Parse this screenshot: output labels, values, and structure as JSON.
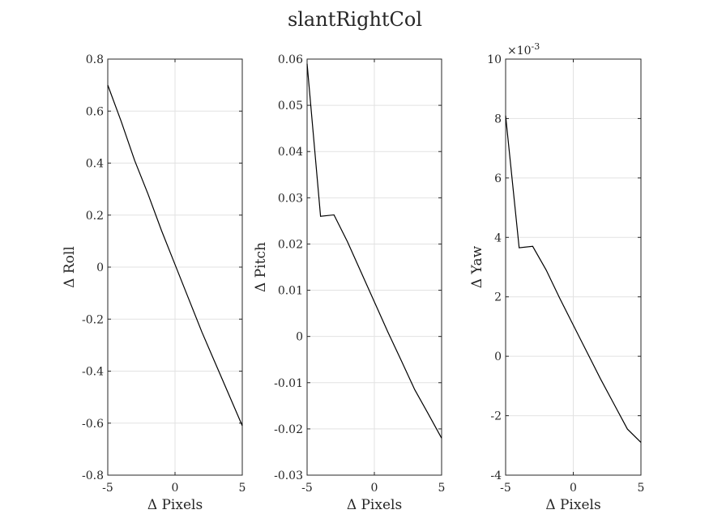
{
  "figure": {
    "title": "slantRightCol"
  },
  "chart_data": [
    {
      "type": "line",
      "xlabel": "Δ Pixels",
      "ylabel": "Δ Roll",
      "xlim": [
        -5,
        5
      ],
      "ylim": [
        -0.8,
        0.8
      ],
      "grid": true,
      "xticks": [
        "-5",
        "0",
        "5"
      ],
      "yticks": [
        "0.8",
        "0.6",
        "0.4",
        "0.2",
        "0",
        "-0.2",
        "-0.4",
        "-0.6",
        "-0.8"
      ],
      "x": [
        -5,
        -4,
        -3,
        -2,
        -1,
        0,
        1,
        2,
        3,
        4,
        5
      ],
      "y": [
        0.7,
        0.56,
        0.41,
        0.28,
        0.14,
        0.01,
        -0.12,
        -0.25,
        -0.37,
        -0.49,
        -0.61
      ]
    },
    {
      "type": "line",
      "xlabel": "Δ Pixels",
      "ylabel": "Δ Pitch",
      "xlim": [
        -5,
        5
      ],
      "ylim": [
        -0.03,
        0.06
      ],
      "grid": true,
      "xticks": [
        "-5",
        "0",
        "5"
      ],
      "yticks": [
        "0.06",
        "0.05",
        "0.04",
        "0.03",
        "0.02",
        "0.01",
        "0",
        "-0.01",
        "-0.02",
        "-0.03"
      ],
      "x": [
        -5,
        -4,
        -3,
        -2,
        -1,
        0,
        1,
        2,
        3,
        4,
        5
      ],
      "y": [
        0.059,
        0.026,
        0.0263,
        0.0205,
        0.014,
        0.0075,
        0.001,
        -0.0052,
        -0.0115,
        -0.0167,
        -0.022
      ]
    },
    {
      "type": "line",
      "xlabel": "Δ Pixels",
      "ylabel": "Δ Yaw",
      "xlim": [
        -5,
        5
      ],
      "ylim": [
        -4,
        10
      ],
      "y_exponent_label": "×10",
      "y_exponent_power": "-3",
      "grid": true,
      "xticks": [
        "-5",
        "0",
        "5"
      ],
      "yticks": [
        "10",
        "8",
        "6",
        "4",
        "2",
        "0",
        "-2",
        "-4"
      ],
      "x": [
        -5,
        -4,
        -3,
        -2,
        -1,
        0,
        1,
        2,
        3,
        4,
        5
      ],
      "y": [
        8.1,
        3.65,
        3.7,
        2.9,
        1.95,
        1.05,
        0.15,
        -0.75,
        -1.6,
        -2.45,
        -2.9
      ]
    }
  ]
}
